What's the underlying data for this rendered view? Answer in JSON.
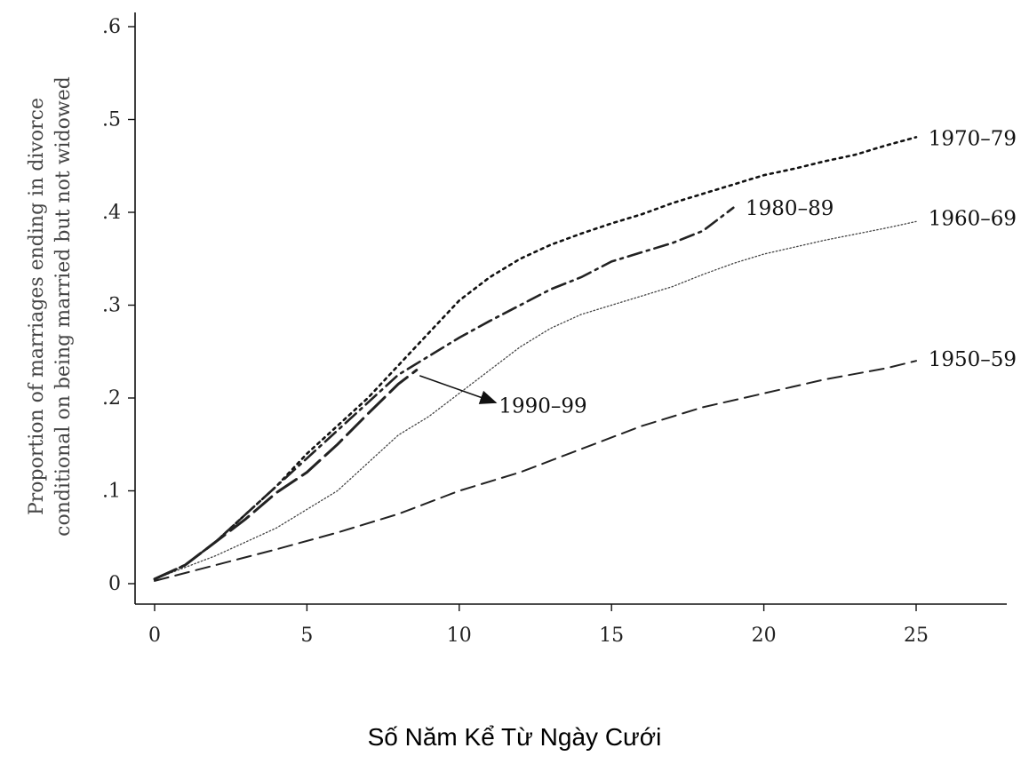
{
  "chart_data": {
    "type": "line",
    "title": "",
    "xlabel": "Số Năm Kể Từ Ngày Cưới",
    "ylabel_lines": [
      "Proportion of marriages ending in divorce",
      "conditional on being married but not widowed"
    ],
    "xlim": [
      0,
      28
    ],
    "ylim": [
      0,
      0.6
    ],
    "x_ticks": [
      0,
      5,
      10,
      15,
      20,
      25
    ],
    "x_tick_labels": [
      "0",
      "5",
      "10",
      "15",
      "20",
      "25"
    ],
    "y_ticks": [
      0,
      0.1,
      0.2,
      0.3,
      0.4,
      0.5,
      0.6
    ],
    "y_tick_labels": [
      "0",
      ".1",
      ".2",
      ".3",
      ".4",
      ".5",
      ".6"
    ],
    "grid": false,
    "series": [
      {
        "name": "1950–59",
        "line_style": "dashed",
        "x": [
          0,
          2,
          4,
          6,
          8,
          10,
          12,
          14,
          16,
          18,
          20,
          22,
          24,
          25
        ],
        "y": [
          0.003,
          0.02,
          0.037,
          0.055,
          0.075,
          0.1,
          0.12,
          0.145,
          0.17,
          0.19,
          0.205,
          0.22,
          0.232,
          0.24
        ]
      },
      {
        "name": "1960–69",
        "line_style": "thin-dotted",
        "x": [
          0,
          2,
          4,
          6,
          7,
          8,
          9,
          10,
          11,
          12,
          13,
          14,
          15,
          16,
          17,
          18,
          19,
          20,
          22,
          24,
          25
        ],
        "y": [
          0.005,
          0.03,
          0.06,
          0.1,
          0.13,
          0.16,
          0.18,
          0.205,
          0.23,
          0.255,
          0.275,
          0.29,
          0.3,
          0.31,
          0.32,
          0.333,
          0.345,
          0.355,
          0.37,
          0.383,
          0.39
        ]
      },
      {
        "name": "1970–79",
        "line_style": "dotted",
        "x": [
          0,
          1,
          2,
          3,
          4,
          5,
          6,
          7,
          8,
          9,
          10,
          11,
          12,
          13,
          14,
          15,
          16,
          17,
          18,
          19,
          20,
          21,
          22,
          23,
          24,
          25
        ],
        "y": [
          0.005,
          0.02,
          0.045,
          0.075,
          0.105,
          0.14,
          0.17,
          0.2,
          0.235,
          0.27,
          0.305,
          0.33,
          0.35,
          0.365,
          0.377,
          0.388,
          0.398,
          0.41,
          0.42,
          0.43,
          0.44,
          0.447,
          0.455,
          0.462,
          0.472,
          0.481
        ]
      },
      {
        "name": "1980–89",
        "line_style": "dash-dot",
        "x": [
          0,
          1,
          2,
          3,
          4,
          5,
          6,
          7,
          8,
          9,
          10,
          11,
          12,
          13,
          14,
          15,
          16,
          17,
          18,
          19
        ],
        "y": [
          0.005,
          0.02,
          0.045,
          0.075,
          0.105,
          0.135,
          0.165,
          0.195,
          0.225,
          0.245,
          0.265,
          0.283,
          0.3,
          0.317,
          0.33,
          0.347,
          0.357,
          0.367,
          0.38,
          0.405
        ]
      },
      {
        "name": "1990–99",
        "line_style": "long-dash",
        "x": [
          0,
          1,
          2,
          3,
          4,
          5,
          6,
          7,
          8,
          8.6
        ],
        "y": [
          0.005,
          0.02,
          0.045,
          0.07,
          0.098,
          0.12,
          0.15,
          0.183,
          0.215,
          0.23
        ]
      }
    ],
    "series_labels": [
      {
        "name": "1970–79",
        "x": 25.4,
        "y": 0.48
      },
      {
        "name": "1960–69",
        "x": 25.4,
        "y": 0.394
      },
      {
        "name": "1980–89",
        "x": 19.4,
        "y": 0.405
      },
      {
        "name": "1950–59",
        "x": 25.4,
        "y": 0.242
      },
      {
        "name": "1990–99",
        "x": 11.3,
        "y": 0.192
      }
    ],
    "annotation_arrow": {
      "from": [
        8.7,
        0.224
      ],
      "to": [
        11.2,
        0.195
      ],
      "label": "1990–99"
    }
  }
}
